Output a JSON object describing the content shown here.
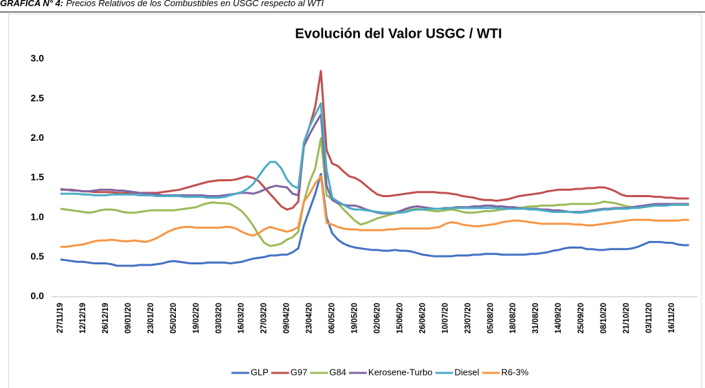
{
  "header": {
    "label": "GRÁFICA N° 4:",
    "caption": "Precios Relativos de los Combustibles en USGC respecto al WTI"
  },
  "chart_data": {
    "type": "line",
    "title": "Evolución del Valor USGC / WTI",
    "categories": [
      "27/11/19",
      null,
      null,
      null,
      "12/12/19",
      null,
      null,
      null,
      "26/12/19",
      null,
      null,
      null,
      "09/01/20",
      null,
      null,
      null,
      "23/01/20",
      null,
      null,
      null,
      "05/02/20",
      null,
      null,
      null,
      "19/02/20",
      null,
      null,
      null,
      "03/03/20",
      null,
      null,
      null,
      "16/03/20",
      null,
      null,
      null,
      "27/03/20",
      null,
      null,
      null,
      "09/04/20",
      null,
      null,
      null,
      "23/04/20",
      null,
      null,
      null,
      "06/05/20",
      null,
      null,
      null,
      "19/05/20",
      null,
      null,
      null,
      "02/06/20",
      null,
      null,
      null,
      "15/06/20",
      null,
      null,
      null,
      "26/06/20",
      null,
      null,
      null,
      "10/07/20",
      null,
      null,
      null,
      "23/07/20",
      null,
      null,
      null,
      "05/08/20",
      null,
      null,
      null,
      "18/08/20",
      null,
      null,
      null,
      "31/08/20",
      null,
      null,
      null,
      "14/09/20",
      null,
      null,
      null,
      "25/09/20",
      null,
      null,
      null,
      "08/10/20",
      null,
      null,
      null,
      "21/10/20",
      null,
      null,
      null,
      "03/11/20",
      null,
      null,
      null,
      "16/11/20",
      null,
      null,
      null
    ],
    "series": [
      {
        "name": "GLP",
        "color": "#4472c4",
        "values": [
          0.47,
          0.46,
          0.45,
          0.44,
          0.44,
          0.43,
          0.42,
          0.42,
          0.42,
          0.41,
          0.39,
          0.39,
          0.39,
          0.39,
          0.4,
          0.4,
          0.4,
          0.41,
          0.42,
          0.44,
          0.45,
          0.44,
          0.43,
          0.42,
          0.42,
          0.42,
          0.43,
          0.43,
          0.43,
          0.43,
          0.42,
          0.43,
          0.44,
          0.46,
          0.48,
          0.49,
          0.5,
          0.52,
          0.52,
          0.53,
          0.53,
          0.56,
          0.61,
          0.9,
          1.1,
          1.3,
          1.55,
          1.0,
          0.8,
          0.72,
          0.67,
          0.64,
          0.62,
          0.61,
          0.6,
          0.59,
          0.59,
          0.58,
          0.58,
          0.59,
          0.58,
          0.58,
          0.57,
          0.55,
          0.53,
          0.52,
          0.51,
          0.51,
          0.51,
          0.51,
          0.52,
          0.52,
          0.52,
          0.53,
          0.53,
          0.54,
          0.54,
          0.54,
          0.53,
          0.53,
          0.53,
          0.53,
          0.53,
          0.54,
          0.54,
          0.55,
          0.56,
          0.58,
          0.59,
          0.61,
          0.62,
          0.62,
          0.62,
          0.6,
          0.6,
          0.59,
          0.59,
          0.6,
          0.6,
          0.6,
          0.6,
          0.61,
          0.63,
          0.66,
          0.69,
          0.69,
          0.69,
          0.68,
          0.68,
          0.66,
          0.65,
          0.65
        ]
      },
      {
        "name": "G97",
        "color": "#c0504d",
        "values": [
          1.36,
          1.35,
          1.35,
          1.34,
          1.33,
          1.33,
          1.32,
          1.32,
          1.32,
          1.32,
          1.31,
          1.31,
          1.31,
          1.31,
          1.31,
          1.31,
          1.31,
          1.31,
          1.32,
          1.33,
          1.34,
          1.35,
          1.37,
          1.39,
          1.41,
          1.43,
          1.45,
          1.46,
          1.47,
          1.47,
          1.47,
          1.48,
          1.5,
          1.52,
          1.5,
          1.46,
          1.38,
          1.3,
          1.22,
          1.14,
          1.1,
          1.12,
          1.2,
          1.95,
          2.15,
          2.4,
          2.85,
          1.85,
          1.68,
          1.65,
          1.58,
          1.52,
          1.5,
          1.46,
          1.4,
          1.34,
          1.29,
          1.27,
          1.27,
          1.28,
          1.29,
          1.3,
          1.31,
          1.32,
          1.32,
          1.32,
          1.32,
          1.31,
          1.31,
          1.3,
          1.29,
          1.27,
          1.26,
          1.25,
          1.23,
          1.22,
          1.22,
          1.21,
          1.22,
          1.23,
          1.25,
          1.27,
          1.28,
          1.29,
          1.3,
          1.31,
          1.33,
          1.34,
          1.35,
          1.35,
          1.35,
          1.36,
          1.36,
          1.37,
          1.37,
          1.38,
          1.38,
          1.36,
          1.33,
          1.29,
          1.27,
          1.27,
          1.27,
          1.27,
          1.27,
          1.26,
          1.26,
          1.25,
          1.25,
          1.24,
          1.24,
          1.24
        ]
      },
      {
        "name": "G84",
        "color": "#9bbb59",
        "values": [
          1.11,
          1.1,
          1.09,
          1.08,
          1.07,
          1.06,
          1.07,
          1.09,
          1.1,
          1.1,
          1.09,
          1.07,
          1.06,
          1.06,
          1.07,
          1.08,
          1.09,
          1.09,
          1.09,
          1.09,
          1.09,
          1.1,
          1.11,
          1.12,
          1.13,
          1.16,
          1.18,
          1.19,
          1.18,
          1.18,
          1.17,
          1.13,
          1.08,
          1.0,
          0.9,
          0.78,
          0.68,
          0.64,
          0.65,
          0.67,
          0.72,
          0.75,
          0.82,
          1.2,
          1.45,
          1.62,
          2.0,
          1.28,
          1.23,
          1.18,
          1.1,
          1.03,
          0.96,
          0.91,
          0.93,
          0.96,
          0.99,
          1.01,
          1.03,
          1.05,
          1.07,
          1.09,
          1.1,
          1.11,
          1.1,
          1.09,
          1.08,
          1.08,
          1.09,
          1.1,
          1.09,
          1.07,
          1.06,
          1.06,
          1.07,
          1.08,
          1.08,
          1.09,
          1.1,
          1.11,
          1.12,
          1.12,
          1.13,
          1.14,
          1.14,
          1.15,
          1.15,
          1.15,
          1.16,
          1.16,
          1.17,
          1.17,
          1.17,
          1.17,
          1.17,
          1.18,
          1.2,
          1.19,
          1.18,
          1.16,
          1.14,
          1.13,
          1.13,
          1.13,
          1.14,
          1.15,
          1.15,
          1.16,
          1.16,
          1.16,
          1.16,
          1.16
        ]
      },
      {
        "name": "Kerosene-Turbo",
        "color": "#8064a2",
        "values": [
          1.35,
          1.35,
          1.34,
          1.34,
          1.33,
          1.33,
          1.34,
          1.35,
          1.35,
          1.35,
          1.34,
          1.34,
          1.33,
          1.32,
          1.31,
          1.3,
          1.3,
          1.29,
          1.28,
          1.28,
          1.28,
          1.28,
          1.28,
          1.28,
          1.28,
          1.28,
          1.27,
          1.27,
          1.27,
          1.28,
          1.29,
          1.3,
          1.31,
          1.31,
          1.3,
          1.32,
          1.35,
          1.38,
          1.4,
          1.39,
          1.38,
          1.3,
          1.28,
          1.9,
          2.05,
          2.18,
          2.3,
          1.4,
          1.22,
          1.18,
          1.16,
          1.15,
          1.15,
          1.13,
          1.1,
          1.08,
          1.06,
          1.05,
          1.05,
          1.06,
          1.08,
          1.11,
          1.13,
          1.14,
          1.13,
          1.12,
          1.11,
          1.11,
          1.12,
          1.12,
          1.13,
          1.13,
          1.13,
          1.14,
          1.14,
          1.15,
          1.15,
          1.14,
          1.14,
          1.13,
          1.13,
          1.12,
          1.11,
          1.11,
          1.11,
          1.1,
          1.1,
          1.09,
          1.09,
          1.08,
          1.07,
          1.07,
          1.07,
          1.08,
          1.09,
          1.1,
          1.11,
          1.11,
          1.12,
          1.12,
          1.12,
          1.13,
          1.14,
          1.15,
          1.16,
          1.17,
          1.17,
          1.17,
          1.17,
          1.17,
          1.17,
          1.17
        ]
      },
      {
        "name": "Diesel",
        "color": "#4bacc6",
        "values": [
          1.3,
          1.3,
          1.3,
          1.3,
          1.29,
          1.29,
          1.28,
          1.28,
          1.28,
          1.29,
          1.29,
          1.29,
          1.29,
          1.29,
          1.28,
          1.28,
          1.28,
          1.27,
          1.27,
          1.27,
          1.27,
          1.27,
          1.26,
          1.26,
          1.26,
          1.26,
          1.25,
          1.25,
          1.25,
          1.26,
          1.28,
          1.3,
          1.32,
          1.36,
          1.42,
          1.52,
          1.62,
          1.7,
          1.7,
          1.62,
          1.48,
          1.4,
          1.37,
          1.95,
          2.15,
          2.3,
          2.44,
          1.6,
          1.25,
          1.2,
          1.16,
          1.12,
          1.1,
          1.1,
          1.09,
          1.08,
          1.07,
          1.06,
          1.06,
          1.06,
          1.06,
          1.07,
          1.09,
          1.1,
          1.1,
          1.11,
          1.11,
          1.11,
          1.11,
          1.12,
          1.12,
          1.12,
          1.12,
          1.12,
          1.12,
          1.12,
          1.12,
          1.12,
          1.11,
          1.11,
          1.11,
          1.11,
          1.11,
          1.1,
          1.1,
          1.09,
          1.08,
          1.07,
          1.07,
          1.07,
          1.07,
          1.06,
          1.06,
          1.07,
          1.08,
          1.09,
          1.1,
          1.1,
          1.11,
          1.11,
          1.11,
          1.12,
          1.12,
          1.13,
          1.14,
          1.15,
          1.15,
          1.15,
          1.16,
          1.16,
          1.16,
          1.16
        ]
      },
      {
        "name": "R6-3%",
        "color": "#f79646",
        "values": [
          0.63,
          0.63,
          0.64,
          0.65,
          0.66,
          0.68,
          0.7,
          0.71,
          0.71,
          0.72,
          0.71,
          0.7,
          0.7,
          0.71,
          0.7,
          0.69,
          0.71,
          0.74,
          0.78,
          0.82,
          0.85,
          0.87,
          0.88,
          0.88,
          0.87,
          0.87,
          0.87,
          0.87,
          0.87,
          0.88,
          0.88,
          0.86,
          0.82,
          0.79,
          0.77,
          0.8,
          0.85,
          0.88,
          0.86,
          0.84,
          0.82,
          0.84,
          0.88,
          1.2,
          1.3,
          1.43,
          1.52,
          0.93,
          0.91,
          0.88,
          0.86,
          0.85,
          0.85,
          0.84,
          0.84,
          0.84,
          0.84,
          0.84,
          0.85,
          0.85,
          0.86,
          0.86,
          0.86,
          0.86,
          0.86,
          0.86,
          0.87,
          0.88,
          0.92,
          0.94,
          0.93,
          0.91,
          0.9,
          0.89,
          0.89,
          0.9,
          0.91,
          0.92,
          0.94,
          0.95,
          0.96,
          0.96,
          0.95,
          0.94,
          0.93,
          0.92,
          0.92,
          0.92,
          0.92,
          0.92,
          0.92,
          0.91,
          0.91,
          0.9,
          0.9,
          0.91,
          0.92,
          0.93,
          0.94,
          0.95,
          0.96,
          0.97,
          0.97,
          0.97,
          0.97,
          0.96,
          0.96,
          0.96,
          0.96,
          0.96,
          0.97,
          0.97
        ]
      }
    ],
    "ylim": [
      0,
      3
    ],
    "yticks": [
      {
        "value": 0,
        "label": "0.0"
      },
      0.5,
      {
        "value": 1,
        "label": "1.0"
      },
      1.5,
      {
        "value": 2,
        "label": "2.0"
      },
      2.5,
      {
        "value": 3,
        "label": "3.0"
      }
    ],
    "grid": false,
    "legend": "bottom"
  }
}
